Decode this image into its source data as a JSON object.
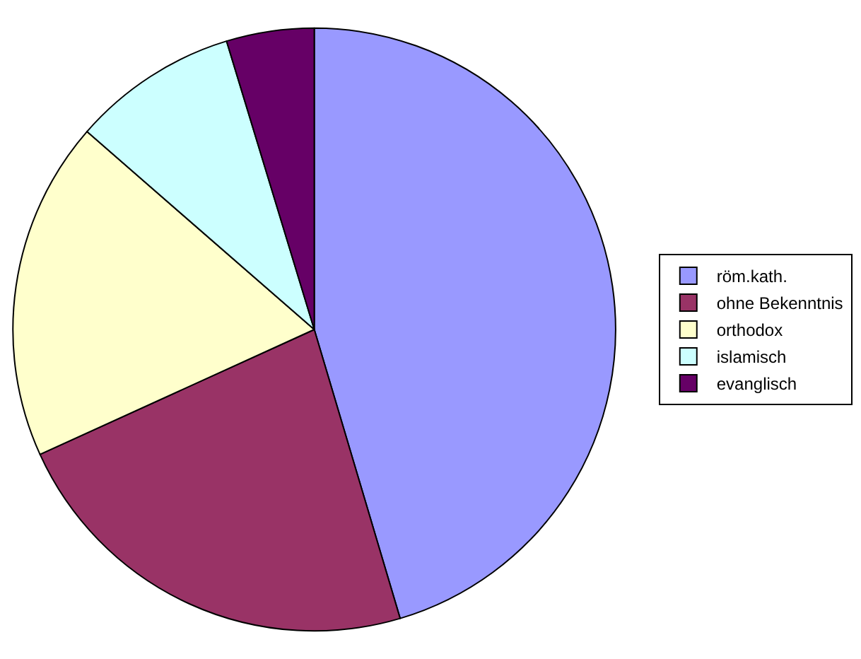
{
  "chart_data": {
    "type": "pie",
    "categories": [
      "röm.kath.",
      "ohne Bekenntnis",
      "orthodox",
      "islamisch",
      "evanglisch"
    ],
    "values": [
      45.4,
      22.8,
      18.2,
      8.9,
      4.7
    ],
    "colors": [
      "#9999ff",
      "#993366",
      "#ffffcc",
      "#ccffff",
      "#660066"
    ],
    "legend": "right"
  }
}
